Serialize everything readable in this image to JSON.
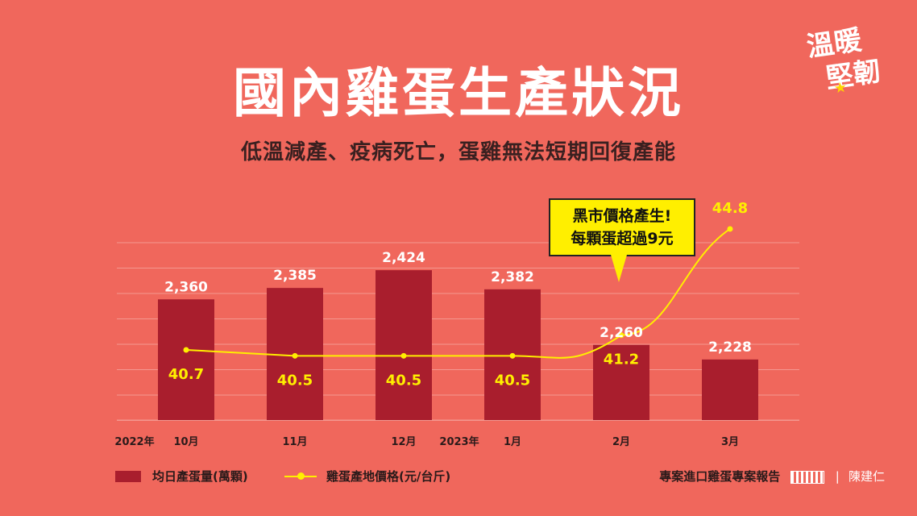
{
  "title": "國內雞蛋生產狀況",
  "subtitle": "低溫減產、疫病死亡，蛋雞無法短期回復產能",
  "logo": {
    "line1": "溫暖",
    "line2": "堅韌"
  },
  "callout": {
    "line1": "黑市價格產生!",
    "line2": "每顆蛋超過9元"
  },
  "legend": {
    "bar_label": "均日產蛋量(萬顆)",
    "line_label": "雞蛋產地價格(元/台斤)"
  },
  "footer": {
    "report": "專案進口雞蛋專案報告",
    "sep": "|",
    "name": "陳建仁"
  },
  "colors": {
    "background": "#f0675c",
    "bar": "#a91e2d",
    "line": "#ffef00",
    "bar_label": "#ffffff",
    "line_label": "#ffef00"
  },
  "chart_data": {
    "type": "bar",
    "categories": [
      "10月",
      "11月",
      "12月",
      "1月",
      "2月",
      "3月"
    ],
    "year_labels": [
      "2022年",
      "2023年"
    ],
    "series": [
      {
        "name": "均日產蛋量(萬顆)",
        "type": "bar",
        "values": [
          2360,
          2385,
          2424,
          2382,
          2260,
          2228
        ],
        "labels": [
          "2,360",
          "2,385",
          "2,424",
          "2,382",
          "2,260",
          "2,228"
        ]
      },
      {
        "name": "雞蛋產地價格(元/台斤)",
        "type": "line",
        "values": [
          40.7,
          40.5,
          40.5,
          40.5,
          41.2,
          44.8
        ],
        "labels": [
          "40.7",
          "40.5",
          "40.5",
          "40.5",
          "41.2",
          "44.8"
        ]
      }
    ],
    "grid": true,
    "legend_position": "bottom-left"
  }
}
